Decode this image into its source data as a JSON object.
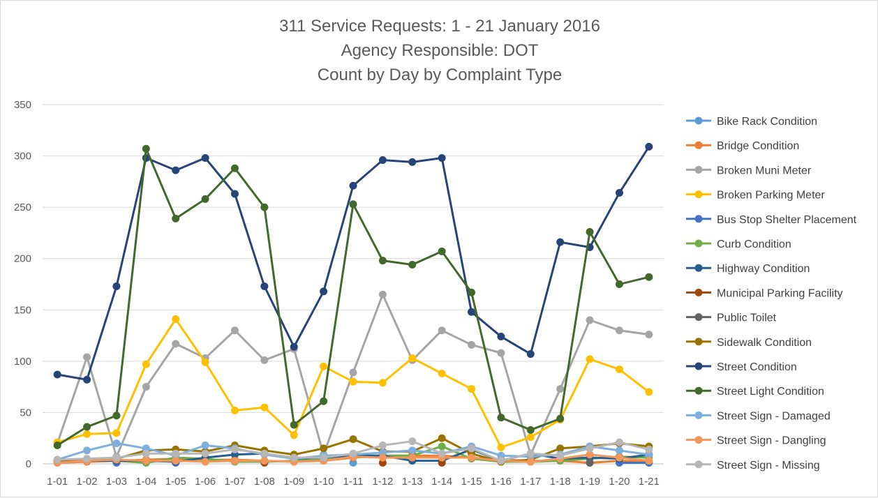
{
  "chart_data": {
    "type": "line",
    "title_lines": [
      "311 Service Requests: 1 - 21 January 2016",
      "Agency Responsible: DOT",
      "Count by Day by Complaint Type"
    ],
    "xlabel": "",
    "ylabel": "",
    "ylim": [
      0,
      350
    ],
    "yticks": [
      0,
      50,
      100,
      150,
      200,
      250,
      300,
      350
    ],
    "grid": "horizontal",
    "legend_position": "right",
    "categories": [
      "1-01",
      "1-02",
      "1-03",
      "1-04",
      "1-05",
      "1-06",
      "1-07",
      "1-08",
      "1-09",
      "1-10",
      "1-11",
      "1-12",
      "1-13",
      "1-14",
      "1-15",
      "1-16",
      "1-17",
      "1-18",
      "1-19",
      "1-20",
      "1-21"
    ],
    "series": [
      {
        "name": "Bike Rack Condition",
        "color": "#5b9bd5",
        "values": [
          null,
          null,
          null,
          null,
          null,
          null,
          null,
          null,
          null,
          null,
          1,
          null,
          null,
          null,
          null,
          null,
          null,
          null,
          null,
          null,
          null
        ]
      },
      {
        "name": "Bridge Condition",
        "color": "#ed7d31",
        "values": [
          1,
          2,
          3,
          4,
          5,
          4,
          4,
          3,
          2,
          3,
          6,
          8,
          8,
          8,
          6,
          4,
          3,
          3,
          1,
          3,
          2
        ]
      },
      {
        "name": "Broken Muni Meter",
        "color": "#a5a5a5",
        "values": [
          20,
          104,
          7,
          75,
          117,
          103,
          130,
          101,
          112,
          9,
          89,
          165,
          101,
          130,
          116,
          108,
          9,
          73,
          140,
          130,
          126
        ]
      },
      {
        "name": "Broken Parking Meter",
        "color": "#ffc000",
        "values": [
          21,
          29,
          30,
          97,
          141,
          99,
          52,
          55,
          28,
          95,
          80,
          79,
          103,
          88,
          73,
          16,
          26,
          43,
          102,
          92,
          70
        ]
      },
      {
        "name": "Bus Stop Shelter Placement",
        "color": "#4472c4",
        "values": [
          null,
          null,
          1,
          null,
          1,
          null,
          null,
          null,
          null,
          null,
          null,
          null,
          null,
          null,
          null,
          null,
          null,
          null,
          null,
          1,
          1
        ]
      },
      {
        "name": "Curb Condition",
        "color": "#70ad47",
        "values": [
          2,
          4,
          3,
          1,
          6,
          5,
          2,
          2,
          3,
          4,
          8,
          8,
          8,
          17,
          5,
          2,
          2,
          3,
          5,
          7,
          6
        ]
      },
      {
        "name": "Highway Condition",
        "color": "#255e91",
        "values": [
          2,
          3,
          3,
          3,
          2,
          6,
          9,
          10,
          5,
          6,
          8,
          8,
          3,
          3,
          14,
          3,
          10,
          5,
          6,
          5,
          9
        ]
      },
      {
        "name": "Municipal Parking Facility",
        "color": "#9e480e",
        "values": [
          null,
          null,
          null,
          null,
          null,
          null,
          null,
          1,
          null,
          null,
          null,
          1,
          null,
          1,
          null,
          null,
          null,
          null,
          null,
          null,
          null
        ]
      },
      {
        "name": "Public Toilet",
        "color": "#636363",
        "values": [
          null,
          null,
          null,
          null,
          null,
          null,
          null,
          null,
          null,
          null,
          null,
          null,
          null,
          null,
          null,
          null,
          null,
          null,
          1,
          null,
          null
        ]
      },
      {
        "name": "Sidewalk Condition",
        "color": "#997300",
        "values": [
          3,
          4,
          5,
          13,
          14,
          12,
          18,
          13,
          9,
          15,
          24,
          12,
          12,
          25,
          10,
          2,
          4,
          15,
          17,
          20,
          17
        ]
      },
      {
        "name": "Street Condition",
        "color": "#264478",
        "values": [
          87,
          82,
          173,
          298,
          286,
          298,
          263,
          173,
          114,
          168,
          271,
          296,
          294,
          298,
          148,
          124,
          107,
          216,
          211,
          264,
          309
        ]
      },
      {
        "name": "Street Light Condition",
        "color": "#43682b",
        "values": [
          18,
          36,
          47,
          307,
          239,
          258,
          288,
          250,
          38,
          61,
          253,
          198,
          194,
          207,
          167,
          45,
          33,
          44,
          226,
          175,
          182
        ]
      },
      {
        "name": "Street Sign - Damaged",
        "color": "#7cafdd",
        "values": [
          4,
          13,
          20,
          15,
          8,
          18,
          15,
          9,
          5,
          8,
          9,
          11,
          13,
          10,
          17,
          8,
          7,
          9,
          17,
          13,
          9
        ]
      },
      {
        "name": "Street Sign - Dangling",
        "color": "#f1975a",
        "values": [
          1,
          3,
          4,
          3,
          3,
          2,
          3,
          3,
          2,
          3,
          7,
          6,
          6,
          6,
          6,
          3,
          2,
          5,
          9,
          6,
          3
        ]
      },
      {
        "name": "Street Sign - Missing",
        "color": "#b7b7b7",
        "values": [
          4,
          5,
          6,
          10,
          10,
          10,
          14,
          10,
          6,
          6,
          10,
          18,
          22,
          10,
          15,
          3,
          10,
          8,
          15,
          21,
          14
        ]
      }
    ]
  }
}
